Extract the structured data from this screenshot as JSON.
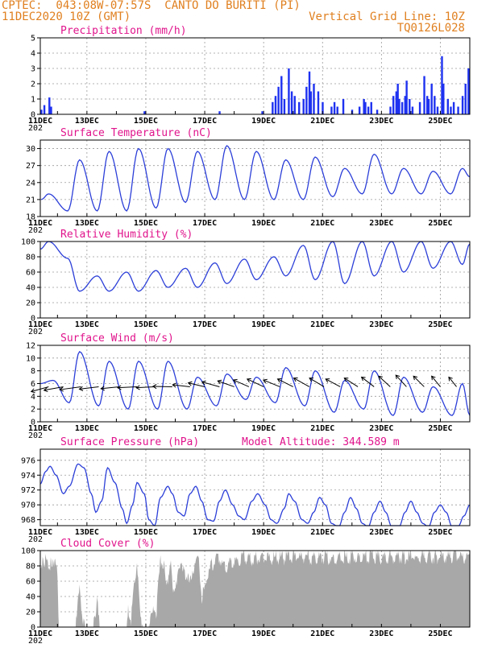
{
  "header": {
    "line1": "CPTEC:  043:08W-07:57S  CANTO DO BURITI (PI)",
    "line2": "11DEC2020 10Z (GMT)",
    "grid_note": "Vertical Grid Line: 10Z",
    "code": "TQ0126L028"
  },
  "colors": {
    "header": "#e08020",
    "title": "#e0148c",
    "line": "#2c3fd8",
    "bar": "#1e32f0",
    "cloud": "#a8a8a8"
  },
  "x_axis": {
    "day_range": [
      11.4167,
      26.0
    ],
    "tick_days": [
      11,
      13,
      15,
      17,
      19,
      21,
      23,
      25
    ],
    "tick_labels": [
      "11DEC",
      "13DEC",
      "15DEC",
      "17DEC",
      "19DEC",
      "21DEC",
      "23DEC",
      "25DEC"
    ],
    "under_label": "202"
  },
  "chart_data": [
    {
      "type": "bar",
      "title": "Precipitation (mm/h)",
      "ylim": [
        0,
        5
      ],
      "yticks": [
        "0",
        "1",
        "2",
        "3",
        "4",
        "5"
      ],
      "gridlines": true,
      "spikes": [
        [
          11.45,
          0.3
        ],
        [
          11.55,
          0.6
        ],
        [
          11.72,
          1.1
        ],
        [
          11.78,
          0.5
        ],
        [
          14.95,
          0.2
        ],
        [
          17.5,
          0.2
        ],
        [
          18.95,
          0.2
        ],
        [
          19.3,
          0.8
        ],
        [
          19.4,
          1.2
        ],
        [
          19.5,
          1.8
        ],
        [
          19.6,
          2.5
        ],
        [
          19.7,
          1.0
        ],
        [
          19.85,
          3.0
        ],
        [
          19.95,
          1.5
        ],
        [
          20.05,
          1.2
        ],
        [
          20.2,
          0.8
        ],
        [
          20.35,
          1.0
        ],
        [
          20.45,
          1.8
        ],
        [
          20.55,
          2.8
        ],
        [
          20.6,
          1.5
        ],
        [
          20.7,
          2.0
        ],
        [
          20.85,
          1.5
        ],
        [
          21.0,
          0.8
        ],
        [
          21.3,
          0.5
        ],
        [
          21.4,
          0.8
        ],
        [
          21.5,
          0.5
        ],
        [
          21.7,
          1.0
        ],
        [
          22.0,
          0.3
        ],
        [
          22.25,
          0.5
        ],
        [
          22.4,
          1.0
        ],
        [
          22.45,
          0.8
        ],
        [
          22.55,
          0.5
        ],
        [
          22.65,
          0.8
        ],
        [
          22.85,
          0.3
        ],
        [
          23.3,
          0.5
        ],
        [
          23.4,
          1.2
        ],
        [
          23.5,
          1.5
        ],
        [
          23.55,
          2.0
        ],
        [
          23.6,
          1.0
        ],
        [
          23.7,
          0.8
        ],
        [
          23.8,
          1.2
        ],
        [
          23.85,
          2.2
        ],
        [
          23.95,
          1.0
        ],
        [
          24.05,
          0.5
        ],
        [
          24.3,
          0.8
        ],
        [
          24.45,
          2.5
        ],
        [
          24.55,
          1.2
        ],
        [
          24.6,
          1.0
        ],
        [
          24.7,
          2.0
        ],
        [
          24.8,
          1.2
        ],
        [
          24.9,
          0.5
        ],
        [
          25.05,
          3.8
        ],
        [
          25.1,
          2.0
        ],
        [
          25.25,
          1.0
        ],
        [
          25.35,
          0.5
        ],
        [
          25.45,
          0.8
        ],
        [
          25.6,
          0.5
        ],
        [
          25.75,
          1.2
        ],
        [
          25.85,
          2.0
        ],
        [
          25.95,
          3.0
        ]
      ]
    },
    {
      "type": "line",
      "title": "Surface Temperature (nC)",
      "ylim": [
        18,
        31.5
      ],
      "yticks": [
        18,
        21,
        24,
        27,
        30
      ],
      "gridlines": true,
      "min_day": [
        11.45,
        12.35,
        13.35,
        14.35,
        15.35,
        16.35,
        17.35,
        18.35,
        19.35,
        20.35,
        21.35,
        22.35,
        23.35,
        24.35,
        25.35
      ],
      "minima": [
        21.0,
        19.0,
        19.0,
        19.0,
        19.5,
        20.5,
        21.0,
        21.0,
        21.0,
        21.0,
        21.5,
        22.0,
        22.0,
        22.0,
        22.0
      ],
      "max_day": [
        11.7,
        12.75,
        13.75,
        14.75,
        15.75,
        16.75,
        17.75,
        18.75,
        19.75,
        20.75,
        21.75,
        22.75,
        23.75,
        24.75,
        25.75
      ],
      "maxima": [
        22.0,
        28.0,
        29.5,
        30.0,
        30.0,
        29.5,
        30.5,
        29.5,
        28.0,
        28.5,
        26.5,
        29.0,
        26.5,
        26.0,
        26.5
      ],
      "end_value": 25.0
    },
    {
      "type": "line",
      "title": "Relative Humidity (%)",
      "ylim": [
        0,
        100
      ],
      "yticks": [
        0,
        20,
        40,
        60,
        80,
        100
      ],
      "gridlines": true,
      "max_day": [
        11.4167,
        12.35,
        13.35,
        14.35,
        15.35,
        16.35,
        17.35,
        18.35,
        19.35,
        20.35,
        21.35,
        22.35,
        23.35,
        24.35,
        25.35
      ],
      "maxima": [
        90.0,
        78.0,
        55.0,
        60.0,
        62.0,
        65.0,
        72.0,
        77.0,
        80.0,
        95.0,
        100.0,
        100.0,
        100.0,
        100.0,
        100.0
      ],
      "min_day": [
        11.7,
        12.75,
        13.75,
        14.75,
        15.75,
        16.75,
        17.75,
        18.75,
        19.75,
        20.75,
        21.75,
        22.75,
        23.75,
        24.75,
        25.75
      ],
      "minima": [
        100.0,
        35.0,
        35.0,
        35.0,
        40.0,
        40.0,
        45.0,
        50.0,
        55.0,
        50.0,
        45.0,
        55.0,
        60.0,
        65.0,
        70.0
      ],
      "end_value": 97.0
    },
    {
      "type": "line",
      "title": "Surface Wind (m/s)",
      "ylim": [
        0,
        12
      ],
      "yticks": [
        0,
        2,
        4,
        6,
        8,
        10,
        12
      ],
      "gridlines": true,
      "min_day": [
        11.4167,
        12.4,
        13.4,
        14.4,
        15.4,
        16.4,
        17.4,
        18.4,
        19.4,
        20.4,
        21.4,
        22.4,
        23.4,
        24.4,
        25.4
      ],
      "minima": [
        6.0,
        3.0,
        2.5,
        2.0,
        2.0,
        2.0,
        2.5,
        3.5,
        3.0,
        2.5,
        1.5,
        2.0,
        1.0,
        1.5,
        1.0
      ],
      "max_day": [
        11.85,
        12.75,
        13.75,
        14.75,
        15.75,
        16.75,
        17.75,
        18.75,
        19.75,
        20.75,
        21.75,
        22.75,
        23.75,
        24.75,
        25.75
      ],
      "maxima": [
        6.5,
        11.0,
        9.5,
        9.5,
        9.5,
        7.0,
        7.5,
        7.0,
        8.5,
        8.0,
        6.5,
        8.0,
        7.0,
        5.5,
        6.0
      ],
      "end_value": 1.0,
      "vectors": [
        [
          11.7,
          0.9,
          0.25
        ],
        [
          12.2,
          1.0,
          0.18
        ],
        [
          12.8,
          1.1,
          0.15
        ],
        [
          13.4,
          1.0,
          0.12
        ],
        [
          14.1,
          0.95,
          0.1
        ],
        [
          14.7,
          1.0,
          0.05
        ],
        [
          15.3,
          0.95,
          0.05
        ],
        [
          15.9,
          1.0,
          -0.02
        ],
        [
          16.5,
          0.9,
          -0.1
        ],
        [
          17.0,
          0.85,
          -0.2
        ],
        [
          17.5,
          0.9,
          -0.25
        ],
        [
          18.0,
          0.85,
          -0.3
        ],
        [
          18.5,
          0.8,
          -0.35
        ],
        [
          19.0,
          0.85,
          -0.4
        ],
        [
          19.55,
          0.85,
          -0.35
        ],
        [
          20.0,
          0.8,
          -0.4
        ],
        [
          20.55,
          0.8,
          -0.45
        ],
        [
          21.05,
          0.75,
          -0.45
        ],
        [
          21.6,
          0.75,
          -0.4
        ],
        [
          22.2,
          0.7,
          -0.45
        ],
        [
          22.75,
          0.65,
          -0.5
        ],
        [
          23.3,
          0.6,
          -0.55
        ],
        [
          23.85,
          0.55,
          -0.6
        ],
        [
          24.45,
          0.55,
          -0.55
        ],
        [
          25.0,
          0.45,
          -0.55
        ],
        [
          25.55,
          0.4,
          -0.5
        ]
      ]
    },
    {
      "type": "line",
      "title": "Surface Pressure (hPa)",
      "note": "Model Altitude: 344.589 m",
      "ylim": [
        967.2,
        977.5
      ],
      "yticks": [
        968,
        970,
        972,
        974,
        976
      ],
      "gridlines": true,
      "knots": [
        [
          11.4167,
          972.8
        ],
        [
          11.6,
          974.5
        ],
        [
          11.75,
          975.2
        ],
        [
          11.95,
          974.0
        ],
        [
          12.2,
          971.5
        ],
        [
          12.4,
          972.5
        ],
        [
          12.7,
          975.5
        ],
        [
          12.9,
          975.0
        ],
        [
          13.15,
          971.5
        ],
        [
          13.3,
          969.0
        ],
        [
          13.5,
          970.5
        ],
        [
          13.7,
          975.0
        ],
        [
          13.95,
          973.0
        ],
        [
          14.2,
          969.5
        ],
        [
          14.35,
          967.5
        ],
        [
          14.55,
          970.0
        ],
        [
          14.7,
          973.0
        ],
        [
          14.95,
          971.5
        ],
        [
          15.1,
          968.0
        ],
        [
          15.3,
          967.2
        ],
        [
          15.5,
          971.0
        ],
        [
          15.75,
          972.5
        ],
        [
          15.9,
          971.5
        ],
        [
          16.1,
          969.0
        ],
        [
          16.3,
          968.5
        ],
        [
          16.5,
          971.5
        ],
        [
          16.7,
          972.5
        ],
        [
          16.9,
          970.5
        ],
        [
          17.1,
          968.0
        ],
        [
          17.3,
          967.8
        ],
        [
          17.5,
          970.5
        ],
        [
          17.7,
          972.0
        ],
        [
          17.95,
          970.0
        ],
        [
          18.15,
          968.5
        ],
        [
          18.35,
          968.0
        ],
        [
          18.6,
          970.5
        ],
        [
          18.8,
          971.5
        ],
        [
          19.05,
          970.0
        ],
        [
          19.25,
          968.0
        ],
        [
          19.45,
          967.5
        ],
        [
          19.7,
          969.5
        ],
        [
          19.85,
          971.5
        ],
        [
          20.05,
          970.5
        ],
        [
          20.3,
          968.0
        ],
        [
          20.5,
          967.5
        ],
        [
          20.7,
          969.0
        ],
        [
          20.9,
          971.0
        ],
        [
          21.1,
          970.0
        ],
        [
          21.3,
          967.5
        ],
        [
          21.55,
          967.0
        ],
        [
          21.75,
          969.0
        ],
        [
          21.95,
          971.0
        ],
        [
          22.15,
          969.5
        ],
        [
          22.35,
          967.5
        ],
        [
          22.55,
          967.0
        ],
        [
          22.75,
          969.0
        ],
        [
          22.95,
          970.5
        ],
        [
          23.15,
          969.0
        ],
        [
          23.35,
          967.0
        ],
        [
          23.6,
          967.0
        ],
        [
          23.8,
          969.0
        ],
        [
          24.0,
          970.5
        ],
        [
          24.2,
          969.0
        ],
        [
          24.4,
          967.5
        ],
        [
          24.6,
          967.0
        ],
        [
          24.8,
          969.0
        ],
        [
          25.0,
          970.0
        ],
        [
          25.2,
          969.0
        ],
        [
          25.4,
          967.0
        ],
        [
          25.6,
          967.0
        ],
        [
          25.8,
          968.5
        ],
        [
          26.0,
          970.0
        ]
      ]
    },
    {
      "type": "area",
      "title": "Cloud Cover (%)",
      "ylim": [
        0,
        100
      ],
      "yticks": [
        0,
        20,
        40,
        60,
        80,
        100
      ],
      "gridlines": true,
      "knots": [
        [
          11.4167,
          85
        ],
        [
          11.55,
          92
        ],
        [
          11.75,
          88
        ],
        [
          11.9,
          90
        ],
        [
          12.0,
          70
        ],
        [
          12.05,
          0
        ],
        [
          12.6,
          0
        ],
        [
          12.65,
          20
        ],
        [
          12.75,
          55
        ],
        [
          12.85,
          20
        ],
        [
          12.95,
          0
        ],
        [
          13.2,
          0
        ],
        [
          13.25,
          20
        ],
        [
          13.35,
          35
        ],
        [
          13.45,
          0
        ],
        [
          14.35,
          0
        ],
        [
          14.4,
          30
        ],
        [
          14.5,
          15
        ],
        [
          14.6,
          55
        ],
        [
          14.7,
          90
        ],
        [
          14.8,
          20
        ],
        [
          14.9,
          0
        ],
        [
          15.1,
          0
        ],
        [
          15.15,
          15
        ],
        [
          15.25,
          35
        ],
        [
          15.35,
          15
        ],
        [
          15.4,
          50
        ],
        [
          15.5,
          90
        ],
        [
          15.65,
          80
        ],
        [
          15.75,
          60
        ],
        [
          15.85,
          95
        ],
        [
          15.95,
          45
        ],
        [
          16.05,
          60
        ],
        [
          16.2,
          95
        ],
        [
          16.3,
          80
        ],
        [
          16.45,
          65
        ],
        [
          16.6,
          80
        ],
        [
          16.7,
          95
        ],
        [
          16.8,
          90
        ],
        [
          16.9,
          45
        ],
        [
          17.0,
          55
        ],
        [
          17.1,
          75
        ],
        [
          17.3,
          90
        ],
        [
          17.5,
          95
        ],
        [
          17.7,
          80
        ],
        [
          17.9,
          90
        ],
        [
          18.1,
          92
        ],
        [
          18.3,
          95
        ],
        [
          18.5,
          93
        ],
        [
          18.7,
          95
        ],
        [
          18.9,
          96
        ],
        [
          19.2,
          95
        ],
        [
          19.5,
          96
        ],
        [
          19.8,
          95
        ],
        [
          20.2,
          96
        ],
        [
          20.6,
          95
        ],
        [
          21.0,
          96
        ],
        [
          21.5,
          95
        ],
        [
          22.0,
          96
        ],
        [
          22.5,
          97
        ],
        [
          23.0,
          96
        ],
        [
          23.5,
          97
        ],
        [
          24.0,
          96
        ],
        [
          24.5,
          97
        ],
        [
          25.0,
          96
        ],
        [
          25.5,
          97
        ],
        [
          26.0,
          96
        ]
      ]
    }
  ]
}
